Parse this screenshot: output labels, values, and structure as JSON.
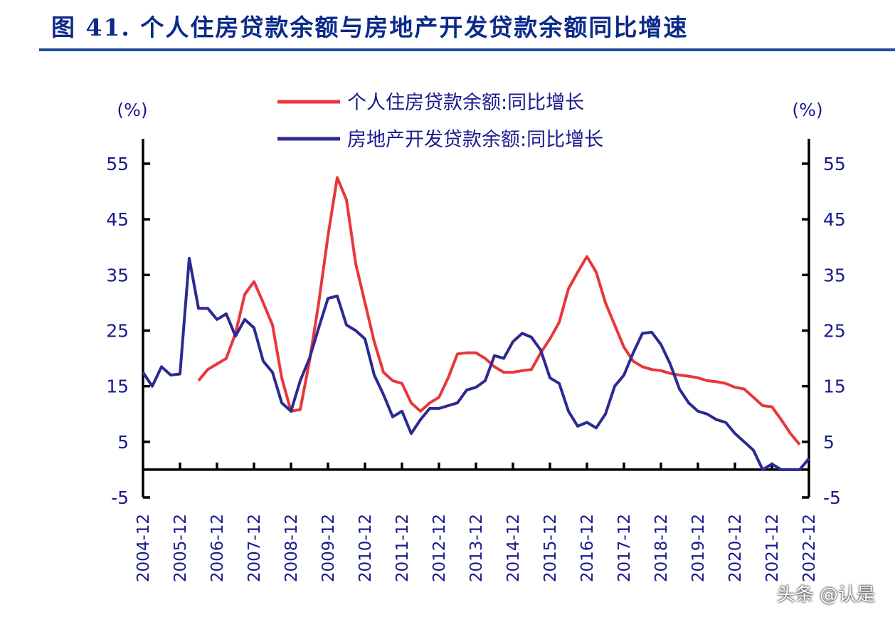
{
  "title": "图 41. 个人住房贷款余额与房地产开发贷款余额同比增速",
  "watermark": "头条 @认是",
  "chart_data": {
    "type": "line",
    "title": "图 41. 个人住房贷款余额与房地产开发贷款余额同比增速",
    "ylabel_left": "(%)",
    "ylabel_right": "(%)",
    "ylim": [
      -5,
      55
    ],
    "yticks": [
      -5,
      5,
      15,
      25,
      35,
      45,
      55
    ],
    "xtick_labels": [
      "2004-12",
      "2005-12",
      "2006-12",
      "2007-12",
      "2008-12",
      "2009-12",
      "2010-12",
      "2011-12",
      "2012-12",
      "2013-12",
      "2014-12",
      "2015-12",
      "2016-12",
      "2017-12",
      "2018-12",
      "2019-12",
      "2020-12",
      "2021-12",
      "2022-12"
    ],
    "x_start": "2004-12",
    "x_frequency": "quarterly",
    "legend_position": "top-center",
    "grid": false,
    "series": [
      {
        "name": "个人住房贷款余额:同比增长",
        "color": "#e8373a",
        "values": [
          null,
          null,
          null,
          null,
          null,
          null,
          16,
          18,
          19,
          20,
          24.5,
          31.5,
          33.8,
          30,
          26,
          16.5,
          10.5,
          10.8,
          19.5,
          30,
          42,
          52.5,
          48.5,
          37,
          30,
          23,
          17.5,
          16,
          15.5,
          12,
          10.5,
          12,
          13,
          16.5,
          20.8,
          21,
          21,
          20,
          18.5,
          17.5,
          17.5,
          17.8,
          18,
          21,
          23.5,
          26.5,
          32.5,
          35.5,
          38.3,
          35.5,
          30,
          26,
          22,
          19.5,
          18.5,
          18,
          17.8,
          17.3,
          17,
          16.8,
          16.5,
          16,
          15.8,
          15.5,
          14.8,
          14.5,
          13,
          11.5,
          11.3,
          9,
          6.5,
          4.5,
          null
        ]
      },
      {
        "name": "房地产开发贷款余额:同比增长",
        "color": "#2b2a92",
        "values": [
          17.5,
          15,
          18.5,
          17,
          17.2,
          38,
          29,
          29,
          27,
          28,
          24,
          27,
          25.5,
          19.5,
          17.5,
          12,
          10.5,
          16,
          20,
          25.5,
          30.8,
          31.2,
          26,
          25,
          23.5,
          17,
          13.5,
          9.5,
          10.5,
          6.5,
          9,
          11,
          11,
          11.5,
          12,
          14.3,
          14.8,
          16,
          20.5,
          20,
          23,
          24.5,
          23.8,
          21.5,
          16.5,
          15.5,
          10.5,
          7.8,
          8.5,
          7.5,
          10,
          15,
          17,
          21,
          24.5,
          24.7,
          22.5,
          19,
          14.5,
          12,
          10.5,
          10,
          9,
          8.5,
          6.5,
          5,
          3.5,
          0,
          1,
          0,
          0,
          0,
          2
        ]
      }
    ]
  }
}
